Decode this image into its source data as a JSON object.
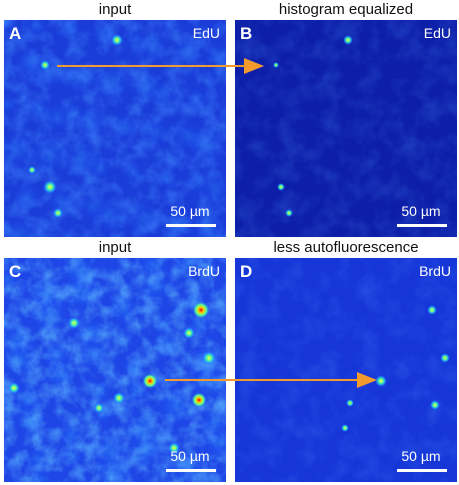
{
  "panels": [
    {
      "label": "A",
      "title": "input",
      "stain": "EdU",
      "scale_bar": "50 µm"
    },
    {
      "label": "B",
      "title": "histogram equalized",
      "stain": "EdU",
      "scale_bar": "50 µm"
    },
    {
      "label": "C",
      "title": "input",
      "stain": "BrdU",
      "scale_bar": "50 µm"
    },
    {
      "label": "D",
      "title": "less autofluorescence",
      "stain": "BrdU",
      "scale_bar": "50 µm"
    }
  ]
}
